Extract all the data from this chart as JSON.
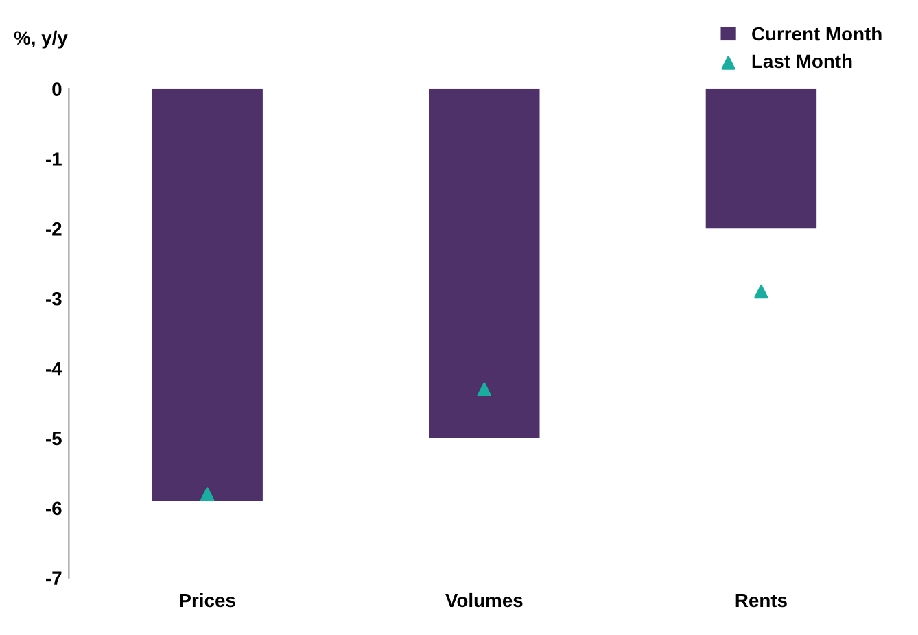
{
  "chart_data": {
    "type": "bar",
    "ylabel": "%, y/y",
    "categories": [
      "Prices",
      "Volumes",
      "Rents"
    ],
    "series": [
      {
        "name": "Current Month",
        "color": "#4e3169",
        "values": [
          -5.9,
          -5.0,
          -2.0
        ]
      },
      {
        "name": "Last Month",
        "type": "scatter",
        "color": "#1aaea0",
        "values": [
          -5.8,
          -4.3,
          -2.9
        ],
        "marker": "triangle"
      }
    ],
    "ylim": [
      -7,
      0
    ],
    "yticks": [
      0,
      -1,
      -2,
      -3,
      -4,
      -5,
      -6,
      -7
    ],
    "grid": false,
    "legend": "top right"
  }
}
